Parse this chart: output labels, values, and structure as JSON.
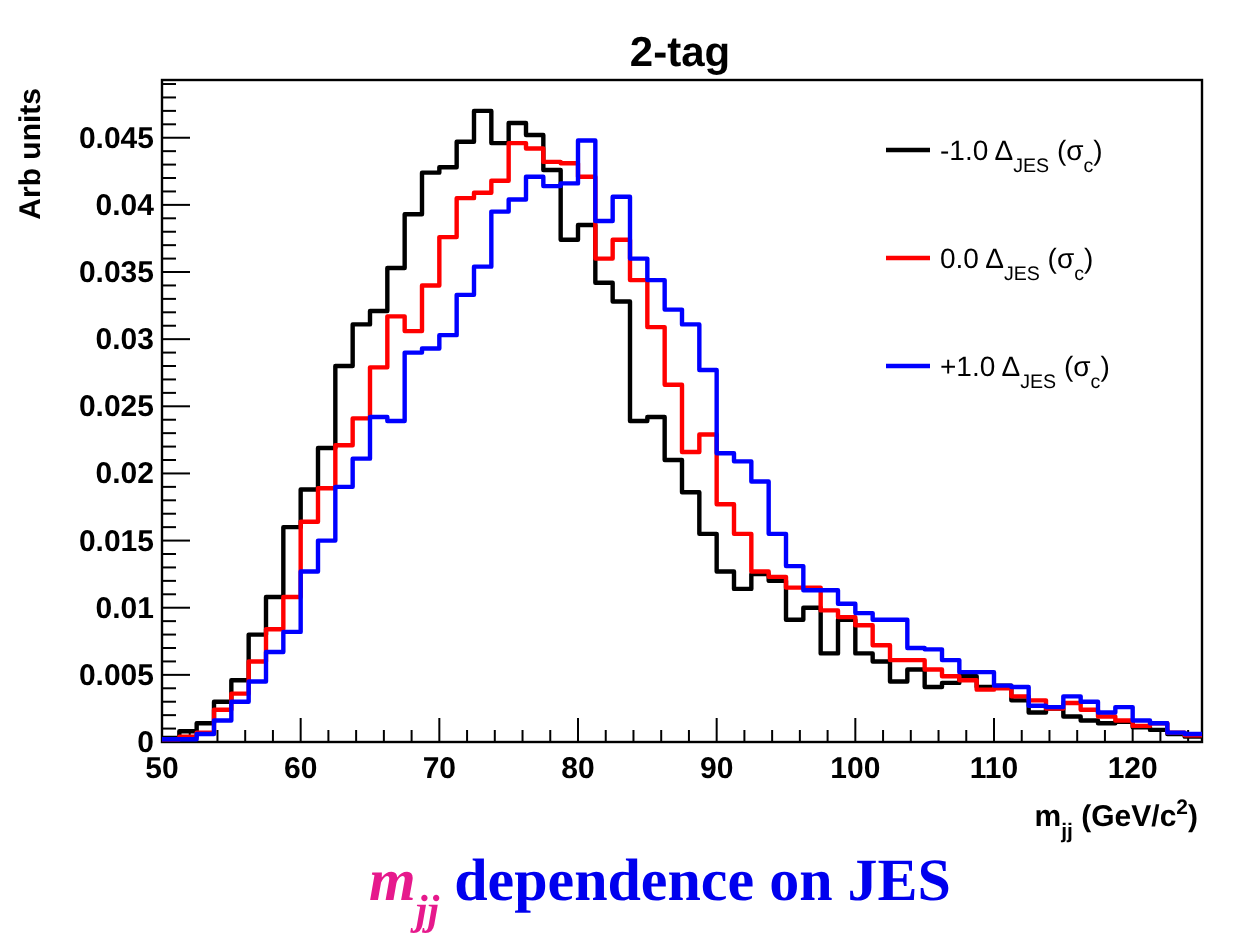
{
  "chart_data": {
    "type": "histogram",
    "title": "2-tag",
    "xlabel": "m$_{jj}$ (GeV/c$^{2}$)",
    "ylabel": "Arb units",
    "annotations": [
      "m$_{jj}$ dependence on JES"
    ],
    "bins": [
      50,
      51.25,
      52.5,
      53.75,
      55,
      56.25,
      57.5,
      58.75,
      60,
      61.25,
      62.5,
      63.75,
      65,
      66.25,
      67.5,
      68.75,
      70,
      71.25,
      72.5,
      73.75,
      75,
      76.25,
      77.5,
      78.75,
      80,
      81.25,
      82.5,
      83.75,
      85,
      86.25,
      87.5,
      88.75,
      90,
      91.25,
      92.5,
      93.75,
      95,
      96.25,
      97.5,
      98.75,
      100,
      101.25,
      102.5,
      103.75,
      105,
      106.25,
      107.5,
      108.75,
      110,
      111.25,
      112.5,
      113.75,
      115,
      116.25,
      117.5,
      118.75,
      120,
      121.25,
      122.5,
      123.75,
      125
    ],
    "series": [
      {
        "name": "-1.0 Δ$_{JES}$ (σ$_{c}$)",
        "color": "#000000",
        "values": [
          0.0003,
          0.0008,
          0.0014,
          0.003,
          0.0046,
          0.008,
          0.0108,
          0.016,
          0.0188,
          0.0219,
          0.028,
          0.0311,
          0.0321,
          0.0353,
          0.0393,
          0.0424,
          0.0428,
          0.0447,
          0.047,
          0.0446,
          0.0461,
          0.0452,
          0.0426,
          0.0374,
          0.0385,
          0.0342,
          0.0328,
          0.0239,
          0.0242,
          0.021,
          0.0186,
          0.0155,
          0.0127,
          0.0114,
          0.0125,
          0.012,
          0.0091,
          0.01,
          0.0066,
          0.0091,
          0.0066,
          0.006,
          0.0045,
          0.0054,
          0.0041,
          0.0044,
          0.0049,
          0.0041,
          0.0042,
          0.0031,
          0.0022,
          0.0025,
          0.0019,
          0.0016,
          0.0014,
          0.0015,
          0.0011,
          0.0009,
          0.0006,
          0.0004
        ]
      },
      {
        "name": "0.0 Δ$_{JES}$ (σ$_{c}$)",
        "color": "#ff0000",
        "values": [
          0.0002,
          0.0004,
          0.0007,
          0.0024,
          0.0036,
          0.006,
          0.0084,
          0.0108,
          0.0164,
          0.0189,
          0.0221,
          0.0241,
          0.0279,
          0.0317,
          0.0306,
          0.034,
          0.0376,
          0.0405,
          0.0409,
          0.0418,
          0.0446,
          0.0442,
          0.0432,
          0.0431,
          0.0421,
          0.036,
          0.0374,
          0.0344,
          0.0309,
          0.0266,
          0.0216,
          0.0229,
          0.0177,
          0.0155,
          0.0127,
          0.0123,
          0.0115,
          0.0115,
          0.0098,
          0.0093,
          0.0087,
          0.0072,
          0.0061,
          0.0061,
          0.0054,
          0.0049,
          0.0046,
          0.0039,
          0.004,
          0.0034,
          0.0031,
          0.0025,
          0.0029,
          0.0024,
          0.0019,
          0.0016,
          0.0012,
          0.0014,
          0.0007,
          0.0005
        ]
      },
      {
        "name": "+1.0 Δ$_{JES}$ (σ$_{c}$)",
        "color": "#0000ff",
        "values": [
          0.0002,
          0.0002,
          0.0006,
          0.0016,
          0.003,
          0.0045,
          0.0067,
          0.0082,
          0.0127,
          0.015,
          0.019,
          0.0211,
          0.0242,
          0.0239,
          0.029,
          0.0293,
          0.0303,
          0.0333,
          0.0354,
          0.0395,
          0.0404,
          0.0421,
          0.0414,
          0.0416,
          0.0448,
          0.0388,
          0.0406,
          0.036,
          0.0344,
          0.0322,
          0.0311,
          0.0277,
          0.0215,
          0.0209,
          0.0194,
          0.0155,
          0.0131,
          0.0113,
          0.0113,
          0.0103,
          0.0096,
          0.0091,
          0.0091,
          0.007,
          0.0069,
          0.0061,
          0.0052,
          0.0052,
          0.0042,
          0.0041,
          0.0027,
          0.0026,
          0.0034,
          0.003,
          0.0022,
          0.0026,
          0.0016,
          0.0014,
          0.0007,
          0.0006
        ]
      }
    ],
    "xlim": [
      50,
      125
    ],
    "ylim": [
      0,
      0.0493
    ],
    "xticks": [
      50,
      {
        "value": 52,
        "label": null
      },
      {
        "value": 54,
        "label": null
      },
      {
        "value": 56,
        "label": null
      },
      {
        "value": 58,
        "label": null
      },
      60,
      {
        "value": 62,
        "label": null
      },
      {
        "value": 64,
        "label": null
      },
      {
        "value": 66,
        "label": null
      },
      {
        "value": 68,
        "label": null
      },
      70,
      {
        "value": 72,
        "label": null
      },
      {
        "value": 74,
        "label": null
      },
      {
        "value": 76,
        "label": null
      },
      {
        "value": 78,
        "label": null
      },
      80,
      {
        "value": 82,
        "label": null
      },
      {
        "value": 84,
        "label": null
      },
      {
        "value": 86,
        "label": null
      },
      {
        "value": 88,
        "label": null
      },
      90,
      {
        "value": 92,
        "label": null
      },
      {
        "value": 94,
        "label": null
      },
      {
        "value": 96,
        "label": null
      },
      {
        "value": 98,
        "label": null
      },
      100,
      {
        "value": 102,
        "label": null
      },
      {
        "value": 104,
        "label": null
      },
      {
        "value": 106,
        "label": null
      },
      {
        "value": 108,
        "label": null
      },
      110,
      {
        "value": 112,
        "label": null
      },
      {
        "value": 114,
        "label": null
      },
      {
        "value": 116,
        "label": null
      },
      {
        "value": 118,
        "label": null
      },
      120,
      {
        "value": 122,
        "label": null
      },
      {
        "value": 124,
        "label": null
      }
    ],
    "yticks": [
      0,
      0.005,
      0.01,
      0.015,
      0.02,
      0.025,
      0.03,
      0.035,
      0.04,
      0.045
    ],
    "legend": "top right",
    "grid": false
  }
}
